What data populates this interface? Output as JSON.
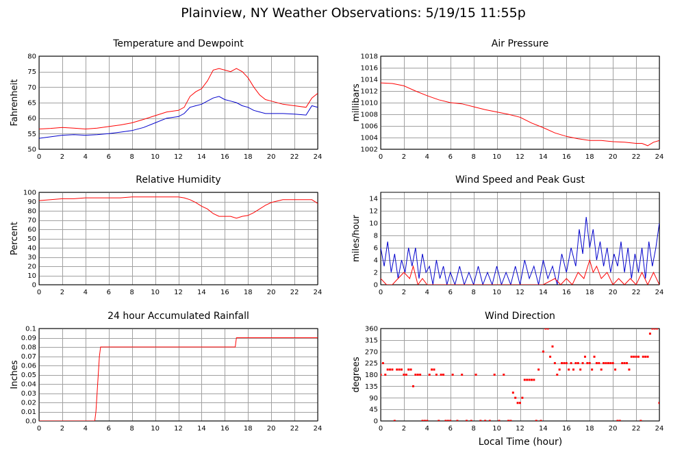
{
  "page": {
    "title": "Plainview, NY Weather Observations: 5/19/15 11:55p",
    "xaxis_label": "Local Time (hour)"
  },
  "colors": {
    "red": "#ff0000",
    "blue": "#0000cc",
    "grid": "#a0a0a0"
  },
  "chart_data": [
    {
      "id": "temp",
      "type": "line",
      "title": "Temperature and Dewpoint",
      "ylabel": "Fahrenheit",
      "xlim": [
        0,
        24
      ],
      "ylim": [
        50,
        80
      ],
      "xticks": [
        0,
        2,
        4,
        6,
        8,
        10,
        12,
        14,
        16,
        18,
        20,
        22,
        24
      ],
      "yticks": [
        50,
        55,
        60,
        65,
        70,
        75,
        80
      ],
      "series": [
        {
          "color": "#ff0000",
          "x": [
            0,
            1,
            2,
            3,
            4,
            5,
            6,
            7,
            8,
            9,
            10,
            11,
            12,
            12.5,
            13,
            13.5,
            14,
            14.5,
            15,
            15.5,
            16,
            16.5,
            17,
            17.5,
            18,
            18.5,
            19,
            19.5,
            20,
            21,
            22,
            23,
            23.5,
            24
          ],
          "y": [
            56.5,
            56.7,
            57.0,
            56.8,
            56.5,
            56.8,
            57.3,
            57.8,
            58.5,
            59.6,
            60.8,
            62.0,
            62.5,
            63.5,
            67.0,
            68.5,
            69.5,
            72.0,
            75.5,
            76.0,
            75.5,
            75.0,
            76.0,
            75.0,
            73.0,
            70.0,
            67.5,
            66.0,
            65.5,
            64.5,
            64.0,
            63.5,
            66.5,
            68.0
          ]
        },
        {
          "color": "#0000cc",
          "x": [
            0,
            1,
            2,
            3,
            4,
            5,
            6,
            7,
            8,
            9,
            10,
            11,
            12,
            12.5,
            13,
            13.5,
            14,
            14.5,
            15,
            15.5,
            16,
            16.5,
            17,
            17.5,
            18,
            18.5,
            19,
            19.5,
            20,
            21,
            22,
            23,
            23.5,
            24
          ],
          "y": [
            53.5,
            54.0,
            54.5,
            54.7,
            54.5,
            54.7,
            55.0,
            55.5,
            56.0,
            57.0,
            58.5,
            60.0,
            60.5,
            61.5,
            63.5,
            64.0,
            64.5,
            65.5,
            66.5,
            67.0,
            66.0,
            65.5,
            65.0,
            64.0,
            63.5,
            62.5,
            62.0,
            61.5,
            61.5,
            61.5,
            61.3,
            61.0,
            64.0,
            63.5
          ]
        }
      ]
    },
    {
      "id": "pressure",
      "type": "line",
      "title": "Air Pressure",
      "ylabel": "millibars",
      "xlim": [
        0,
        24
      ],
      "ylim": [
        1002,
        1018
      ],
      "xticks": [
        0,
        2,
        4,
        6,
        8,
        10,
        12,
        14,
        16,
        18,
        20,
        22,
        24
      ],
      "yticks": [
        1002,
        1004,
        1006,
        1008,
        1010,
        1012,
        1014,
        1016,
        1018
      ],
      "series": [
        {
          "color": "#ff0000",
          "x": [
            0,
            1,
            2,
            3,
            4,
            5,
            6,
            7,
            8,
            9,
            10,
            11,
            12,
            13,
            14,
            15,
            16,
            17,
            18,
            19,
            20,
            21,
            22,
            22.5,
            23,
            23.5,
            24
          ],
          "y": [
            1013.4,
            1013.3,
            1012.9,
            1012.0,
            1011.2,
            1010.5,
            1010.0,
            1009.8,
            1009.3,
            1008.8,
            1008.4,
            1008.0,
            1007.5,
            1006.5,
            1005.7,
            1004.8,
            1004.2,
            1003.8,
            1003.5,
            1003.5,
            1003.3,
            1003.2,
            1003.0,
            1003.0,
            1002.6,
            1003.2,
            1003.5
          ]
        }
      ]
    },
    {
      "id": "humidity",
      "type": "line",
      "title": "Relative Humidity",
      "ylabel": "Percent",
      "xlim": [
        0,
        24
      ],
      "ylim": [
        0,
        100
      ],
      "xticks": [
        0,
        2,
        4,
        6,
        8,
        10,
        12,
        14,
        16,
        18,
        20,
        22,
        24
      ],
      "yticks": [
        0,
        10,
        20,
        30,
        40,
        50,
        60,
        70,
        80,
        90,
        100
      ],
      "series": [
        {
          "color": "#ff0000",
          "x": [
            0,
            1,
            2,
            3,
            4,
            5,
            6,
            7,
            8,
            9,
            10,
            11,
            12,
            12.5,
            13,
            13.5,
            14,
            14.5,
            15,
            15.5,
            16,
            16.5,
            17,
            17.5,
            18,
            18.5,
            19,
            19.5,
            20,
            21,
            22,
            23,
            23.5,
            24
          ],
          "y": [
            91,
            92,
            93,
            93,
            94,
            94,
            94,
            94,
            95,
            95,
            95,
            95,
            95,
            94,
            92,
            89,
            85,
            82,
            77,
            74,
            74,
            74,
            72,
            74,
            75,
            78,
            82,
            86,
            89,
            92,
            92,
            92,
            92,
            88
          ]
        }
      ]
    },
    {
      "id": "wind",
      "type": "line",
      "title": "Wind Speed and Peak Gust",
      "ylabel": "miles/hour",
      "xlim": [
        0,
        24
      ],
      "ylim": [
        0,
        15
      ],
      "xticks": [
        0,
        2,
        4,
        6,
        8,
        10,
        12,
        14,
        16,
        18,
        20,
        22,
        24
      ],
      "yticks": [
        0,
        2,
        4,
        6,
        8,
        10,
        12,
        14
      ],
      "series": [
        {
          "color": "#0000cc",
          "x": [
            0,
            0.3,
            0.6,
            0.9,
            1.2,
            1.5,
            1.8,
            2.1,
            2.4,
            2.7,
            3.0,
            3.3,
            3.6,
            3.9,
            4.2,
            4.5,
            4.8,
            5.1,
            5.4,
            5.7,
            6.0,
            6.4,
            6.8,
            7.2,
            7.6,
            8.0,
            8.4,
            8.8,
            9.2,
            9.6,
            10.0,
            10.4,
            10.8,
            11.2,
            11.6,
            12.0,
            12.4,
            12.8,
            13.2,
            13.6,
            14.0,
            14.4,
            14.8,
            15.2,
            15.6,
            16.0,
            16.4,
            16.8,
            17.1,
            17.4,
            17.7,
            18.0,
            18.3,
            18.6,
            18.9,
            19.2,
            19.5,
            19.8,
            20.1,
            20.4,
            20.7,
            21.0,
            21.3,
            21.6,
            21.9,
            22.2,
            22.5,
            22.8,
            23.1,
            23.4,
            23.7,
            24.0
          ],
          "y": [
            6,
            3,
            7,
            2,
            5,
            1,
            4,
            2,
            6,
            3,
            6,
            1,
            5,
            2,
            3,
            0,
            4,
            1,
            3,
            0,
            2,
            0,
            3,
            0,
            2,
            0,
            3,
            0,
            2,
            0,
            3,
            0,
            2,
            0,
            3,
            0,
            4,
            1,
            3,
            0,
            4,
            1,
            3,
            0,
            5,
            2,
            6,
            3,
            9,
            5,
            11,
            6,
            9,
            4,
            7,
            3,
            6,
            2,
            5,
            3,
            7,
            2,
            6,
            1,
            5,
            2,
            6,
            1,
            7,
            3,
            6,
            10
          ]
        },
        {
          "color": "#ff0000",
          "x": [
            0,
            0.5,
            1,
            1.5,
            2,
            2.5,
            2.8,
            3.2,
            3.6,
            4,
            5,
            6,
            7,
            8,
            9,
            10,
            11,
            12,
            13,
            14,
            15,
            15.5,
            16,
            16.5,
            17,
            17.5,
            18,
            18.3,
            18.6,
            19,
            19.5,
            20,
            20.5,
            21,
            21.5,
            22,
            22.5,
            23,
            23.5,
            24
          ],
          "y": [
            1,
            0,
            0,
            1,
            2,
            1,
            3,
            0,
            1,
            0,
            0,
            0,
            0,
            0,
            0,
            0,
            0,
            0,
            0,
            0,
            1,
            0,
            1,
            0,
            2,
            1,
            4,
            2,
            3,
            1,
            2,
            0,
            1,
            0,
            1,
            0,
            2,
            0,
            2,
            0
          ]
        }
      ]
    },
    {
      "id": "rain",
      "type": "line",
      "title": "24 hour Accumulated Rainfall",
      "ylabel": "Inches",
      "xlim": [
        0,
        24
      ],
      "ylim": [
        0,
        0.1
      ],
      "xticks": [
        0,
        2,
        4,
        6,
        8,
        10,
        12,
        14,
        16,
        18,
        20,
        22,
        24
      ],
      "yticks": [
        0.0,
        0.01,
        0.02,
        0.03,
        0.04,
        0.05,
        0.06,
        0.07,
        0.08,
        0.09,
        0.1
      ],
      "ytick_labels": [
        "0.0",
        "0.01",
        "0.02",
        "0.03",
        "0.04",
        "0.05",
        "0.06",
        "0.07",
        "0.08",
        "0.09",
        "0.1"
      ],
      "series": [
        {
          "color": "#ff0000",
          "x": [
            0,
            4.8,
            4.9,
            5.0,
            5.1,
            5.2,
            5.3,
            16.9,
            17.0,
            24
          ],
          "y": [
            0,
            0,
            0.01,
            0.03,
            0.05,
            0.07,
            0.08,
            0.08,
            0.09,
            0.09
          ]
        }
      ]
    },
    {
      "id": "direction",
      "type": "scatter",
      "title": "Wind Direction",
      "ylabel": "degrees",
      "xlim": [
        0,
        24
      ],
      "ylim": [
        0,
        360
      ],
      "xticks": [
        0,
        2,
        4,
        6,
        8,
        10,
        12,
        14,
        16,
        18,
        20,
        22,
        24
      ],
      "yticks": [
        0,
        45,
        90,
        135,
        180,
        225,
        270,
        315,
        360
      ],
      "series": [
        {
          "color": "#ff0000",
          "x": [
            0,
            0.2,
            0.4,
            0.6,
            0.8,
            1.0,
            1.2,
            1.4,
            1.6,
            1.8,
            2.0,
            2.2,
            2.4,
            2.6,
            2.8,
            3.0,
            3.2,
            3.4,
            3.6,
            3.8,
            4.0,
            4.2,
            4.4,
            4.6,
            4.8,
            5.0,
            5.2,
            5.4,
            5.6,
            5.8,
            6.0,
            6.2,
            6.6,
            7.0,
            7.4,
            7.8,
            8.2,
            8.6,
            9.0,
            9.4,
            9.8,
            10.2,
            10.6,
            11.0,
            11.2,
            11.4,
            11.6,
            11.8,
            12.0,
            12.2,
            12.4,
            12.6,
            12.8,
            13.0,
            13.2,
            13.4,
            13.6,
            13.8,
            14.0,
            14.2,
            14.4,
            14.6,
            14.8,
            15.0,
            15.2,
            15.4,
            15.6,
            15.8,
            16.0,
            16.2,
            16.4,
            16.6,
            16.8,
            17.0,
            17.2,
            17.4,
            17.6,
            17.8,
            18.0,
            18.2,
            18.4,
            18.6,
            18.8,
            19.0,
            19.2,
            19.4,
            19.6,
            19.8,
            20.0,
            20.2,
            20.4,
            20.6,
            20.8,
            21.0,
            21.2,
            21.4,
            21.6,
            21.8,
            22.0,
            22.2,
            22.4,
            22.6,
            22.8,
            23.0,
            23.2,
            23.4,
            23.6,
            23.8,
            24.0
          ],
          "y": [
            180,
            225,
            180,
            200,
            200,
            200,
            0,
            200,
            200,
            200,
            180,
            180,
            200,
            200,
            135,
            180,
            180,
            180,
            0,
            0,
            0,
            180,
            200,
            200,
            180,
            0,
            180,
            180,
            0,
            0,
            0,
            180,
            0,
            180,
            0,
            0,
            180,
            0,
            0,
            0,
            180,
            0,
            180,
            0,
            0,
            110,
            90,
            70,
            70,
            90,
            160,
            160,
            160,
            160,
            160,
            0,
            200,
            0,
            270,
            360,
            360,
            250,
            290,
            225,
            180,
            200,
            225,
            225,
            225,
            200,
            225,
            200,
            225,
            225,
            200,
            225,
            250,
            225,
            225,
            200,
            250,
            225,
            225,
            200,
            225,
            225,
            225,
            225,
            225,
            200,
            0,
            0,
            225,
            225,
            225,
            200,
            250,
            250,
            250,
            250,
            0,
            250,
            250,
            250,
            340,
            360,
            360,
            360,
            70
          ]
        }
      ]
    }
  ]
}
